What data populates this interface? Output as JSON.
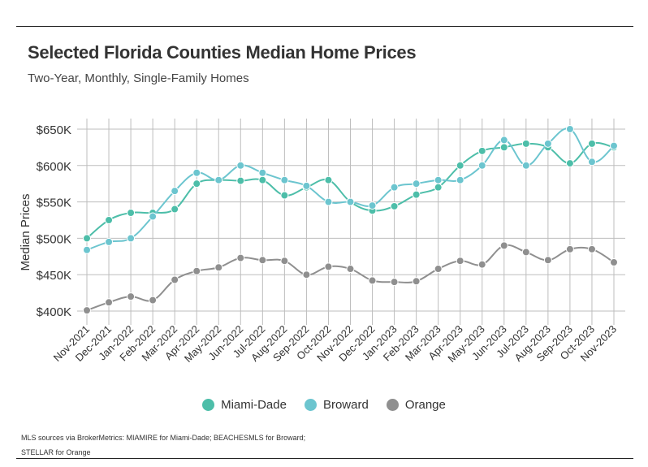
{
  "title": "Selected Florida Counties Median Home Prices",
  "subtitle": "Two-Year, Monthly, Single-Family Homes",
  "source_line1": "MLS sources via BrokerMetrics: MIAMIRE for Miami-Dade; BEACHESMLS for Broward;",
  "source_line2": "STELLAR for Orange",
  "chart_data": {
    "type": "line",
    "ylabel": "Median Prices",
    "ylim": [
      390,
      660
    ],
    "yticks": [
      400,
      450,
      500,
      550,
      600,
      650
    ],
    "ytick_labels": [
      "$400K",
      "$450K",
      "$500K",
      "$550K",
      "$600K",
      "$650K"
    ],
    "grid": true,
    "legend_position": "bottom",
    "categories": [
      "Nov-2021",
      "Dec-2021",
      "Jan-2022",
      "Feb-2022",
      "Mar-2022",
      "Apr-2022",
      "May-2022",
      "Jun-2022",
      "Jul-2022",
      "Aug-2022",
      "Sep-2022",
      "Oct-2022",
      "Nov-2022",
      "Dec-2022",
      "Jan-2023",
      "Feb-2023",
      "Mar-2023",
      "Apr-2023",
      "May-2023",
      "Jun-2023",
      "Jul-2023",
      "Aug-2023",
      "Sep-2023",
      "Oct-2023",
      "Nov-2023"
    ],
    "series": [
      {
        "name": "Miami-Dade",
        "color": "#4dbea9",
        "values": [
          500,
          525,
          535,
          535,
          540,
          575,
          580,
          579,
          580,
          559,
          570,
          580,
          550,
          538,
          544,
          560,
          570,
          600,
          620,
          625,
          630,
          625,
          603,
          630,
          625
        ]
      },
      {
        "name": "Broward",
        "color": "#6cc5cf",
        "values": [
          484,
          495,
          500,
          530,
          565,
          590,
          580,
          600,
          590,
          580,
          572,
          550,
          550,
          545,
          570,
          575,
          580,
          580,
          600,
          635,
          600,
          630,
          650,
          605,
          627
        ]
      },
      {
        "name": "Orange",
        "color": "#8f8f8f",
        "values": [
          401,
          412,
          420,
          415,
          443,
          455,
          460,
          473,
          470,
          469,
          450,
          461,
          458,
          442,
          440,
          441,
          458,
          469,
          464,
          490,
          481,
          470,
          485,
          485,
          467
        ]
      }
    ]
  }
}
